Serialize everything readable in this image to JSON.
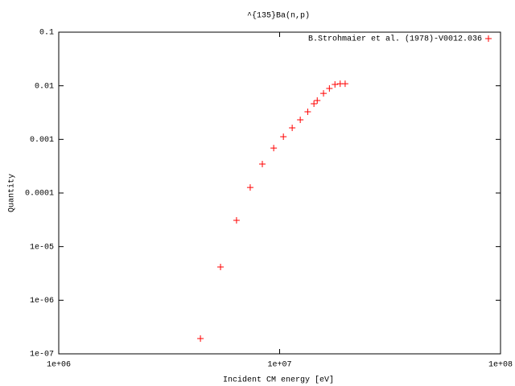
{
  "chart_data": {
    "type": "scatter",
    "title": "^{135}Ba(n,p)",
    "x_label": "Incident CM energy [eV]",
    "y_label": "Quantity",
    "log_x": true,
    "log_y": true,
    "xlim": [
      1000000,
      100000000
    ],
    "ylim": [
      1e-07,
      0.1
    ],
    "xticks": [
      {
        "value": 1000000,
        "label": "1e+06"
      },
      {
        "value": 10000000,
        "label": "1e+07"
      },
      {
        "value": 100000000,
        "label": "1e+08"
      }
    ],
    "yticks": [
      {
        "value": 1e-07,
        "label": "1e-07"
      },
      {
        "value": 1e-06,
        "label": "1e-06"
      },
      {
        "value": 1e-05,
        "label": "1e-05"
      },
      0.0001,
      0.001,
      0.01,
      0.1
    ],
    "legend_position": "top-right",
    "series": [
      {
        "name": "B.Strohmaier et al. (1978)-V0012.036",
        "color": "#ff0000",
        "x": [
          4380000,
          5400000,
          6380000,
          7360000,
          8350000,
          9400000,
          10400000,
          11400000,
          12400000,
          13400000,
          14300000,
          14800000,
          15800000,
          16800000,
          17800000,
          18800000,
          19800000
        ],
        "values": [
          1.93e-07,
          4.17e-06,
          3.09e-05,
          0.000127,
          0.000347,
          0.00069,
          0.00112,
          0.00164,
          0.00232,
          0.00327,
          0.00462,
          0.0053,
          0.0072,
          0.0089,
          0.0106,
          0.0109,
          0.0109
        ]
      }
    ]
  }
}
